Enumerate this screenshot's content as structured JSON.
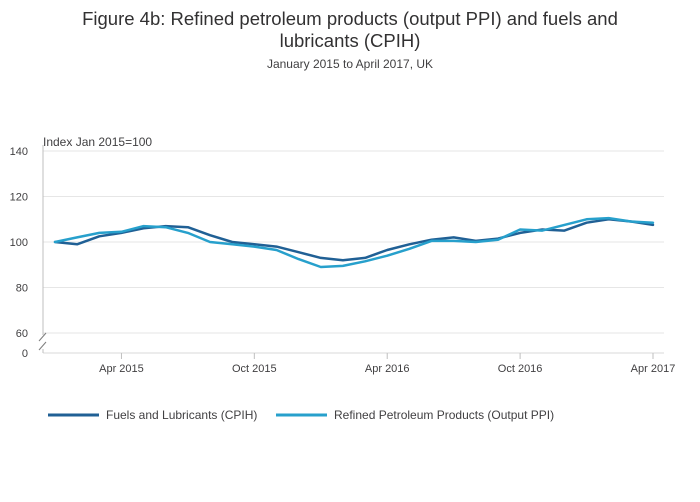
{
  "chart_data": {
    "type": "line",
    "title": "Figure 4b: Refined petroleum products (output PPI) and fuels and lubricants (CPIH)",
    "title_line1": "Figure 4b: Refined petroleum products (output PPI) and fuels and",
    "title_line2": "lubricants (CPIH)",
    "subtitle": "January 2015 to April 2017, UK",
    "ylabel": "Index Jan 2015=100",
    "ylim": [
      55,
      140
    ],
    "yticks": [
      60,
      80,
      100,
      120,
      140
    ],
    "y_zero_label": "0",
    "x": [
      "Jan 2015",
      "Feb 2015",
      "Mar 2015",
      "Apr 2015",
      "May 2015",
      "Jun 2015",
      "Jul 2015",
      "Aug 2015",
      "Sep 2015",
      "Oct 2015",
      "Nov 2015",
      "Dec 2015",
      "Jan 2016",
      "Feb 2016",
      "Mar 2016",
      "Apr 2016",
      "May 2016",
      "Jun 2016",
      "Jul 2016",
      "Aug 2016",
      "Sep 2016",
      "Oct 2016",
      "Nov 2016",
      "Dec 2016",
      "Jan 2017",
      "Feb 2017",
      "Mar 2017",
      "Apr 2017"
    ],
    "xtick_labels": [
      {
        "index": 3,
        "label": "Apr 2015"
      },
      {
        "index": 9,
        "label": "Oct 2015"
      },
      {
        "index": 15,
        "label": "Apr 2016"
      },
      {
        "index": 21,
        "label": "Oct 2016"
      },
      {
        "index": 27,
        "label": "Apr 2017"
      }
    ],
    "series": [
      {
        "name": "Fuels and Lubricants (CPIH)",
        "color": "#206095",
        "values": [
          100,
          99,
          102.5,
          104,
          106,
          107,
          106.5,
          103,
          100,
          99,
          98,
          95.5,
          93,
          92,
          93,
          96.5,
          99,
          101,
          102,
          100.5,
          101.5,
          104,
          105.5,
          105,
          108.5,
          110,
          109,
          107.5
        ]
      },
      {
        "name": "Refined Petroleum Products (Output PPI)",
        "color": "#27A0CC",
        "values": [
          100,
          102,
          104,
          104.5,
          107,
          106.5,
          104,
          100,
          99,
          98,
          96.5,
          92.5,
          89,
          89.5,
          91.5,
          94,
          97,
          100.5,
          100.5,
          100,
          101,
          105.5,
          105,
          107.5,
          110,
          110.5,
          109,
          108.5
        ]
      }
    ]
  }
}
